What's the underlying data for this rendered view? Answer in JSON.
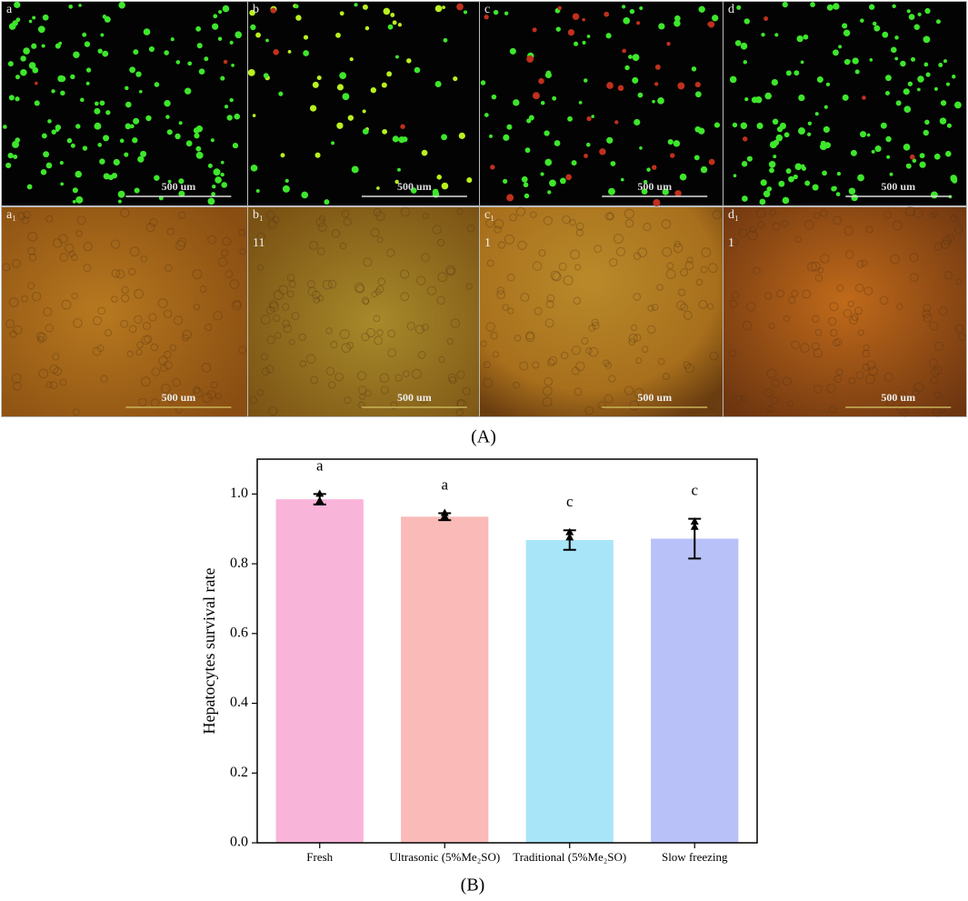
{
  "panel_a": {
    "images": [
      {
        "label": "a",
        "scale": "500 um"
      },
      {
        "label": "b",
        "scale": "500 um"
      },
      {
        "label": "c",
        "scale": "500 um"
      },
      {
        "label": "d",
        "scale": "500 um"
      },
      {
        "label": "a₁",
        "scale": "500 um"
      },
      {
        "label": "b₁",
        "scale": "500 um",
        "note": "11"
      },
      {
        "label": "c₁",
        "scale": "500 um",
        "note": "1"
      },
      {
        "label": "d₁",
        "scale": "500 um",
        "note": "1"
      }
    ],
    "caption": "(A)"
  },
  "chart_data": {
    "type": "bar",
    "caption": "(B)",
    "y_label": "Hepatocytes survival rate",
    "categories": [
      "Fresh",
      "Ultrasonic (5%Me₂SO)",
      "Traditional (5%Me₂SO)",
      "Slow freezing"
    ],
    "values": [
      0.985,
      0.935,
      0.868,
      0.872
    ],
    "errors": [
      0.015,
      0.01,
      0.028,
      0.057
    ],
    "points": [
      [
        0.98,
        1.0
      ],
      [
        0.935,
        0.945
      ],
      [
        0.875,
        0.89
      ],
      [
        0.905,
        0.92
      ]
    ],
    "significance": [
      "a",
      "a",
      "c",
      "c"
    ],
    "colors": [
      "#f9b4d9",
      "#f9bab8",
      "#a9e5f9",
      "#b8c1f8"
    ],
    "ylim": [
      0,
      1.1
    ],
    "yticks": [
      {
        "value": 0,
        "label": "0.0"
      },
      {
        "value": 0.2,
        "label": "0.2"
      },
      {
        "value": 0.4,
        "label": "0.4"
      },
      {
        "value": 0.6,
        "label": "0.6"
      },
      {
        "value": 0.8,
        "label": "0.8"
      },
      {
        "value": 1,
        "label": "1.0"
      }
    ]
  }
}
